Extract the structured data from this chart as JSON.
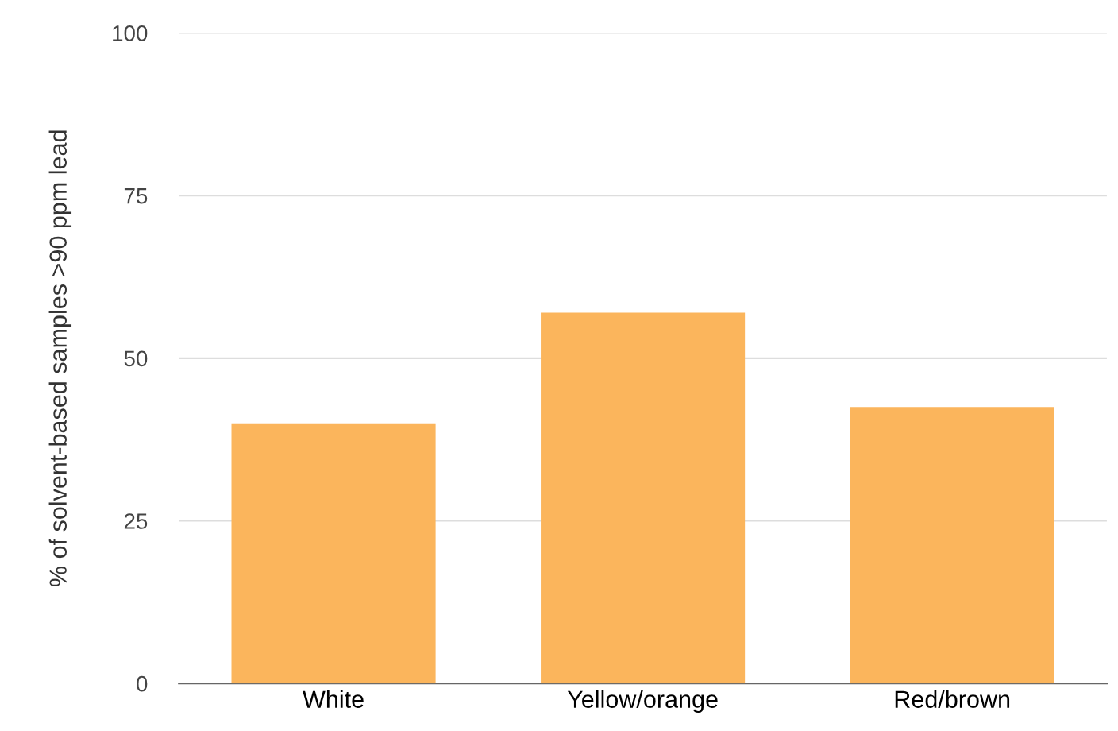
{
  "chart_data": {
    "type": "bar",
    "ylabel": "% of solvent-based samples >90 ppm lead",
    "categories": [
      "White",
      "Yellow/orange",
      "Red/brown"
    ],
    "values": [
      40,
      57,
      42.5
    ],
    "color": "#fbb55c",
    "ylim": [
      0,
      100
    ],
    "yticks": [
      0,
      25,
      50,
      75,
      100
    ],
    "grid": "y"
  }
}
